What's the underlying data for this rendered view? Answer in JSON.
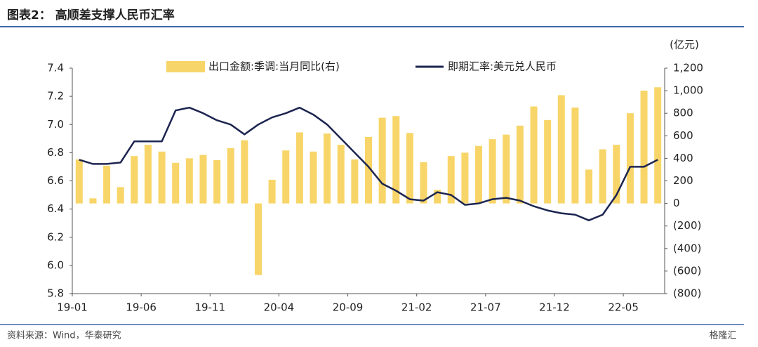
{
  "chart_data": {
    "type": "bar",
    "title": "图表2：  高顺差支撑人民币汇率",
    "source": "资料来源：Wind，华泰研究",
    "watermark": "格隆汇",
    "y2_unit": "(亿元)",
    "categories": [
      "19-01",
      null,
      null,
      null,
      null,
      "19-06",
      null,
      null,
      null,
      null,
      "19-11",
      null,
      null,
      null,
      null,
      "20-04",
      null,
      null,
      null,
      null,
      "20-09",
      null,
      null,
      null,
      null,
      "21-02",
      null,
      null,
      null,
      null,
      "21-07",
      null,
      null,
      null,
      null,
      "21-12",
      null,
      null,
      null,
      null,
      "22-05",
      null,
      null
    ],
    "series": [
      {
        "name": "出口金额:季调:当月同比(右)",
        "type": "bar",
        "axis": "y2",
        "color": "#f8d568",
        "values": [
          390,
          45,
          335,
          145,
          420,
          520,
          460,
          360,
          400,
          430,
          385,
          490,
          560,
          -635,
          210,
          470,
          630,
          460,
          620,
          520,
          390,
          590,
          760,
          775,
          625,
          365,
          120,
          420,
          450,
          510,
          570,
          610,
          690,
          860,
          740,
          960,
          850,
          300,
          480,
          520,
          800,
          1000,
          1030
        ]
      },
      {
        "name": "即期汇率:美元兑人民币",
        "type": "line",
        "axis": "y",
        "color": "#1c2550",
        "values": [
          6.75,
          6.72,
          6.72,
          6.73,
          6.88,
          6.88,
          6.88,
          7.1,
          7.12,
          7.08,
          7.03,
          7.0,
          6.93,
          7.0,
          7.05,
          7.08,
          7.12,
          7.07,
          7.0,
          6.9,
          6.8,
          6.7,
          6.58,
          6.53,
          6.47,
          6.46,
          6.52,
          6.5,
          6.43,
          6.44,
          6.47,
          6.48,
          6.46,
          6.42,
          6.39,
          6.37,
          6.36,
          6.32,
          6.36,
          6.5,
          6.7,
          6.7,
          6.75
        ]
      }
    ],
    "ylim": [
      5.8,
      7.4
    ],
    "yticks": [
      5.8,
      {
        "value": 6.0,
        "label": "6.0"
      },
      6.2,
      6.4,
      6.6,
      6.8,
      {
        "value": 7.0,
        "label": "7.0"
      },
      7.2,
      7.4
    ],
    "y2lim": [
      -800,
      1200
    ],
    "y2ticks": [
      {
        "value": -800,
        "label": "(800)"
      },
      {
        "value": -600,
        "label": "(600)"
      },
      {
        "value": -400,
        "label": "(400)"
      },
      {
        "value": -200,
        "label": "(200)"
      },
      0,
      200,
      400,
      600,
      800,
      {
        "value": 1000,
        "label": "1,000"
      },
      {
        "value": 1200,
        "label": "1,200"
      }
    ],
    "legend": "top"
  }
}
